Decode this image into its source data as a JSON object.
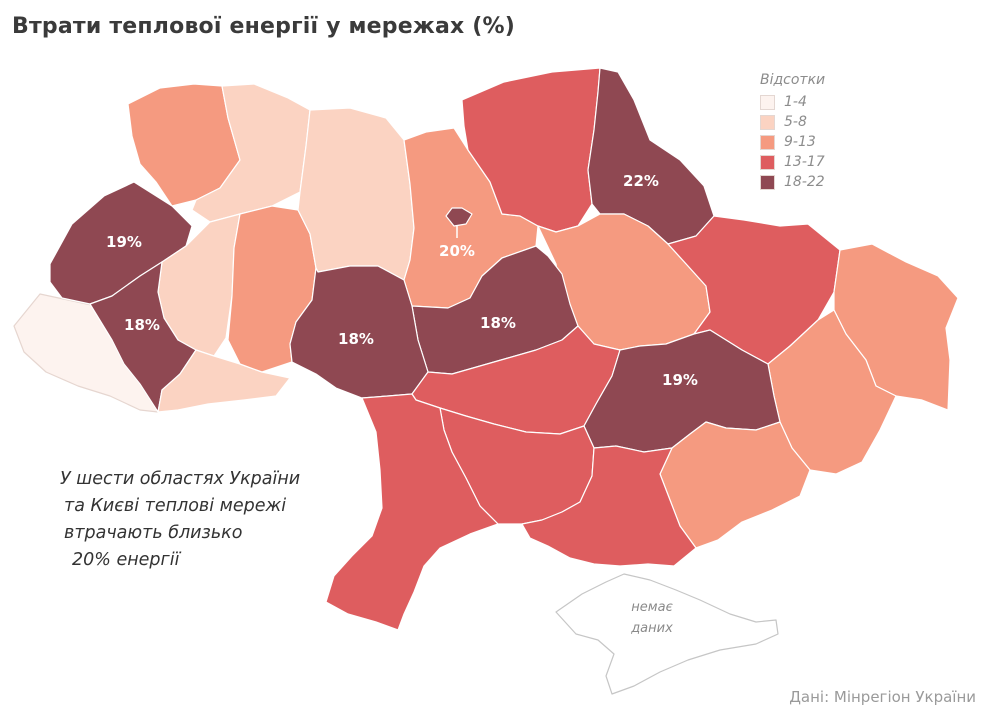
{
  "title": "Втрати теплової енергії у мережах (%)",
  "legend": {
    "title": "Відсотки",
    "items": [
      {
        "label": "1-4",
        "color": "#fdf3ef"
      },
      {
        "label": "5-8",
        "color": "#fbd3c2"
      },
      {
        "label": "9-13",
        "color": "#f59a80"
      },
      {
        "label": "13-17",
        "color": "#de5d5f"
      },
      {
        "label": "18-22",
        "color": "#8f4852"
      }
    ]
  },
  "value_labels": {
    "lviv": "19%",
    "ivano_frankivsk": "18%",
    "vinnytsia": "18%",
    "cherkasy": "18%",
    "kyiv": "20%",
    "sumy": "22%",
    "dnipro": "19%"
  },
  "annotation": {
    "line1": "У шести областях України",
    "line2": "та Києві теплові мережі",
    "line3": "втрачають близько",
    "line4": "20% енергії"
  },
  "no_data": {
    "line1": "немає",
    "line2": "даних"
  },
  "source": "Дані: Мінрегіон України"
}
